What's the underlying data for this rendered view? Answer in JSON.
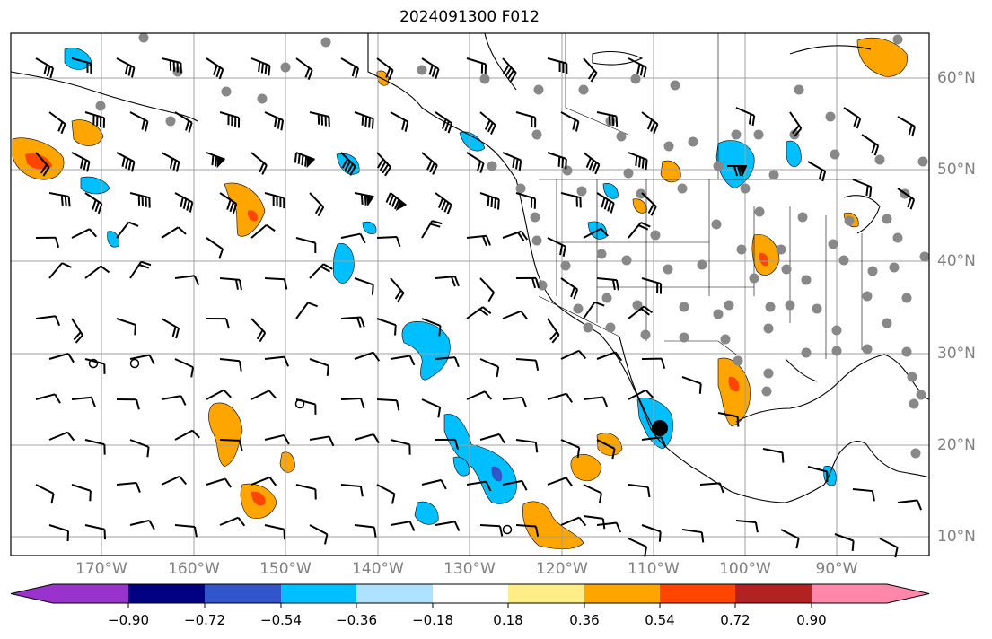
{
  "title": "2024091300 F012",
  "lon_labels": [
    "170°W",
    "160°W",
    "150°W",
    "140°W",
    "130°W",
    "120°W",
    "110°W",
    "100°W",
    "90°W"
  ],
  "lat_labels": [
    "60°N",
    "50°N",
    "40°N",
    "30°N",
    "20°N",
    "10°N"
  ],
  "colorbar": {
    "tick_labels": [
      "−0.90",
      "−0.72",
      "−0.54",
      "−0.36",
      "−0.18",
      "0.18",
      "0.36",
      "0.54",
      "0.72",
      "0.90"
    ],
    "colors": [
      "#9933cc",
      "#000080",
      "#3355cc",
      "#00bfff",
      "#aee0ff",
      "#ffffff",
      "#ffee88",
      "#ffa500",
      "#ff4500",
      "#b22222",
      "#ff88aa"
    ]
  },
  "map_colors": {
    "positive_light": "#ffa500",
    "positive_strong": "#ff4500",
    "negative_light": "#00bfff",
    "negative_strong": "#3355cc",
    "station_dot": "#888888"
  }
}
